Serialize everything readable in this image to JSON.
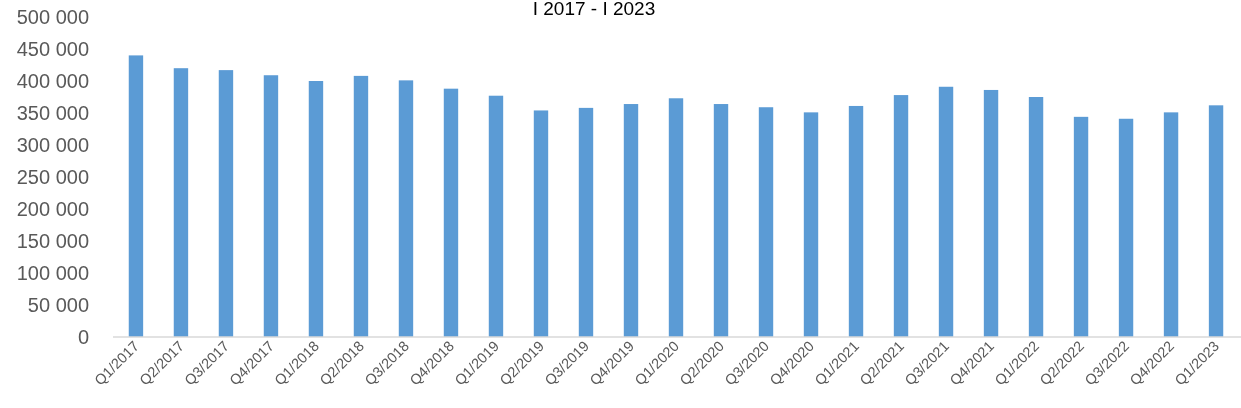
{
  "chart_data": {
    "type": "bar",
    "title": "I 2017 - I 2023",
    "categories": [
      "Q1/2017",
      "Q2/2017",
      "Q3/2017",
      "Q4/2017",
      "Q1/2018",
      "Q2/2018",
      "Q3/2018",
      "Q4/2018",
      "Q1/2019",
      "Q2/2019",
      "Q3/2019",
      "Q4/2019",
      "Q1/2020",
      "Q2/2020",
      "Q3/2020",
      "Q4/2020",
      "Q1/2021",
      "Q2/2021",
      "Q3/2021",
      "Q4/2021",
      "Q1/2022",
      "Q2/2022",
      "Q3/2022",
      "Q4/2022",
      "Q1/2023"
    ],
    "values": [
      440000,
      420000,
      417000,
      409000,
      400000,
      408000,
      401000,
      388000,
      377000,
      354000,
      358000,
      364000,
      373000,
      364000,
      359000,
      351000,
      361000,
      378000,
      391000,
      386000,
      375000,
      344000,
      341000,
      351000,
      362000
    ],
    "color": "#5b9bd5",
    "ylim": [
      0,
      500000
    ],
    "yticks": [
      0,
      {
        "value": 50000,
        "label": "50 000"
      },
      {
        "value": 100000,
        "label": "100 000"
      },
      {
        "value": 150000,
        "label": "150 000"
      },
      {
        "value": 200000,
        "label": "200 000"
      },
      {
        "value": 250000,
        "label": "250 000"
      },
      {
        "value": 300000,
        "label": "300 000"
      },
      {
        "value": 350000,
        "label": "350 000"
      },
      {
        "value": 400000,
        "label": "400 000"
      },
      {
        "value": 450000,
        "label": "450 000"
      },
      {
        "value": 500000,
        "label": "500 000"
      }
    ]
  }
}
